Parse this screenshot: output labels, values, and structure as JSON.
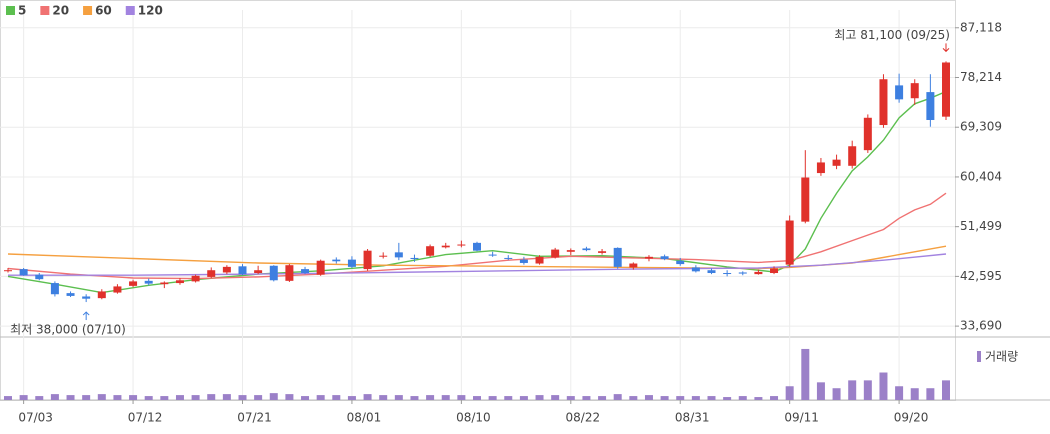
{
  "chart_data": {
    "type": "candlestick",
    "categories": [
      null,
      "07/03",
      null,
      null,
      null,
      null,
      null,
      null,
      "07/12",
      null,
      null,
      null,
      null,
      null,
      null,
      "07/21",
      null,
      null,
      null,
      null,
      null,
      null,
      "08/01",
      null,
      null,
      null,
      null,
      null,
      null,
      "08/10",
      null,
      null,
      null,
      null,
      null,
      null,
      "08/22",
      null,
      null,
      null,
      null,
      null,
      null,
      "08/31",
      null,
      null,
      null,
      null,
      null,
      null,
      "09/11",
      null,
      null,
      null,
      null,
      null,
      null,
      "09/20",
      null,
      null,
      null
    ],
    "open": [
      43700,
      43900,
      42900,
      41400,
      39600,
      39000,
      38700,
      39700,
      40900,
      41800,
      41200,
      41400,
      41700,
      42500,
      43300,
      44400,
      43200,
      44500,
      41800,
      43900,
      42900,
      45600,
      45600,
      43900,
      46300,
      46900,
      45900,
      46300,
      47800,
      48200,
      48600,
      46500,
      45900,
      45600,
      44900,
      46000,
      47000,
      47600,
      46800,
      47700,
      44200,
      45800,
      46200,
      45400,
      44200,
      43700,
      43200,
      43300,
      43000,
      43200,
      44700,
      52400,
      61100,
      62400,
      62400,
      65200,
      69700,
      76800,
      74500,
      75600,
      71200
    ],
    "high": [
      44100,
      44100,
      43200,
      41700,
      39900,
      39400,
      40300,
      41200,
      42000,
      42200,
      41700,
      42300,
      42900,
      44200,
      44600,
      44800,
      44500,
      44600,
      44800,
      44300,
      45600,
      46000,
      46200,
      47500,
      46900,
      48600,
      46500,
      48300,
      48600,
      49000,
      48800,
      47000,
      46400,
      46100,
      46400,
      47700,
      47600,
      47900,
      47500,
      47800,
      45100,
      46400,
      46500,
      45900,
      44600,
      44000,
      43700,
      43500,
      43800,
      44400,
      53500,
      65200,
      63800,
      64400,
      66900,
      71600,
      78800,
      78900,
      77900,
      78800,
      81100
    ],
    "low": [
      43300,
      42700,
      41900,
      39000,
      38900,
      38000,
      38500,
      39500,
      40700,
      41000,
      40500,
      41100,
      41500,
      42300,
      43000,
      42800,
      43000,
      41700,
      41600,
      43000,
      42700,
      44900,
      44100,
      43600,
      45800,
      45500,
      45200,
      46100,
      47600,
      47800,
      47100,
      46100,
      45500,
      44700,
      44700,
      45800,
      46400,
      47100,
      46500,
      44000,
      43800,
      45300,
      45500,
      44500,
      43300,
      43000,
      42600,
      42800,
      42900,
      43000,
      44300,
      52100,
      60600,
      61800,
      61900,
      64700,
      69200,
      73700,
      73300,
      69400,
      70600
    ],
    "close": [
      43700,
      42800,
      42100,
      39400,
      39100,
      38600,
      39900,
      40800,
      41700,
      41300,
      41500,
      41900,
      42700,
      43700,
      44300,
      43000,
      43700,
      41900,
      44600,
      43200,
      45400,
      45300,
      44300,
      47200,
      46300,
      46000,
      45700,
      48000,
      48100,
      48300,
      47200,
      46400,
      45800,
      45000,
      46100,
      47400,
      47300,
      47300,
      47100,
      44300,
      44900,
      46100,
      45700,
      44800,
      43500,
      43200,
      43100,
      43100,
      43400,
      44000,
      52600,
      60300,
      63000,
      63500,
      65900,
      71000,
      77900,
      74300,
      77200,
      70600,
      80900
    ],
    "up_color": "#e0312b",
    "down_color": "#3d7fe0",
    "series": [
      {
        "name": "5",
        "color": "#5cbf4f",
        "x": [
          0,
          3,
          6,
          9,
          12,
          16,
          20,
          24,
          28,
          31,
          34,
          38,
          42,
          46,
          49,
          50,
          51,
          52,
          53,
          54,
          55,
          56,
          57,
          58,
          59,
          60
        ],
        "values": [
          42600,
          41200,
          39700,
          41000,
          42000,
          43000,
          43600,
          44500,
          46500,
          47200,
          46200,
          46300,
          45800,
          44300,
          43400,
          44600,
          47500,
          53000,
          57500,
          61500,
          64000,
          67000,
          71000,
          73500,
          74500,
          75700
        ]
      },
      {
        "name": "20",
        "color": "#f07272",
        "x": [
          0,
          4,
          8,
          12,
          16,
          20,
          24,
          28,
          32,
          36,
          40,
          44,
          48,
          50,
          52,
          54,
          56,
          57,
          58,
          59,
          60
        ],
        "values": [
          44000,
          43000,
          42300,
          42200,
          42500,
          43000,
          43700,
          44400,
          45500,
          46200,
          45900,
          45600,
          45100,
          45400,
          47000,
          49000,
          51000,
          53000,
          54500,
          55500,
          57500
        ]
      },
      {
        "name": "60",
        "color": "#f5a040",
        "x": [
          0,
          8,
          16,
          24,
          32,
          40,
          48,
          50,
          54,
          57,
          60
        ],
        "values": [
          46600,
          45800,
          45000,
          44600,
          44400,
          44200,
          44000,
          44200,
          45000,
          46500,
          48000
        ]
      },
      {
        "name": "120",
        "color": "#a283e0",
        "x": [
          0,
          8,
          16,
          24,
          32,
          40,
          48,
          52,
          56,
          60
        ],
        "values": [
          42800,
          42800,
          43000,
          43300,
          43600,
          43900,
          44100,
          44600,
          45500,
          46600
        ]
      }
    ],
    "ylim": [
      32100,
      90300
    ],
    "yticks": [
      {
        "value": 33690,
        "label": "33,690"
      },
      {
        "value": 42595,
        "label": "42,595"
      },
      {
        "value": 51499,
        "label": "51,499"
      },
      {
        "value": 60404,
        "label": "60,404"
      },
      {
        "value": 69309,
        "label": "69,309"
      },
      {
        "value": 78214,
        "label": "78,214"
      },
      {
        "value": 87118,
        "label": "87,118"
      }
    ],
    "grid": true,
    "annotations": [
      {
        "text": "최고 81,100 (09/25)",
        "index": 60,
        "value": 81100,
        "color": "#e0312b"
      },
      {
        "text": "최저 38,000 (07/10)",
        "index": 5,
        "value": 38000,
        "color": "#3d7fe0"
      }
    ],
    "volume": {
      "name": "거래량",
      "color": "#9b80c8",
      "ylim": [
        0,
        55
      ],
      "values": [
        4,
        5,
        4,
        6,
        5,
        5,
        6,
        5,
        5,
        4,
        4,
        5,
        5,
        6,
        6,
        5,
        5,
        7,
        6,
        4,
        5,
        5,
        4,
        6,
        5,
        5,
        4,
        5,
        5,
        5,
        4,
        4,
        4,
        4,
        5,
        5,
        4,
        4,
        4,
        6,
        4,
        5,
        4,
        4,
        4,
        4,
        3,
        4,
        3,
        4,
        14,
        52,
        18,
        12,
        20,
        20,
        28,
        14,
        12,
        12,
        20
      ]
    }
  }
}
